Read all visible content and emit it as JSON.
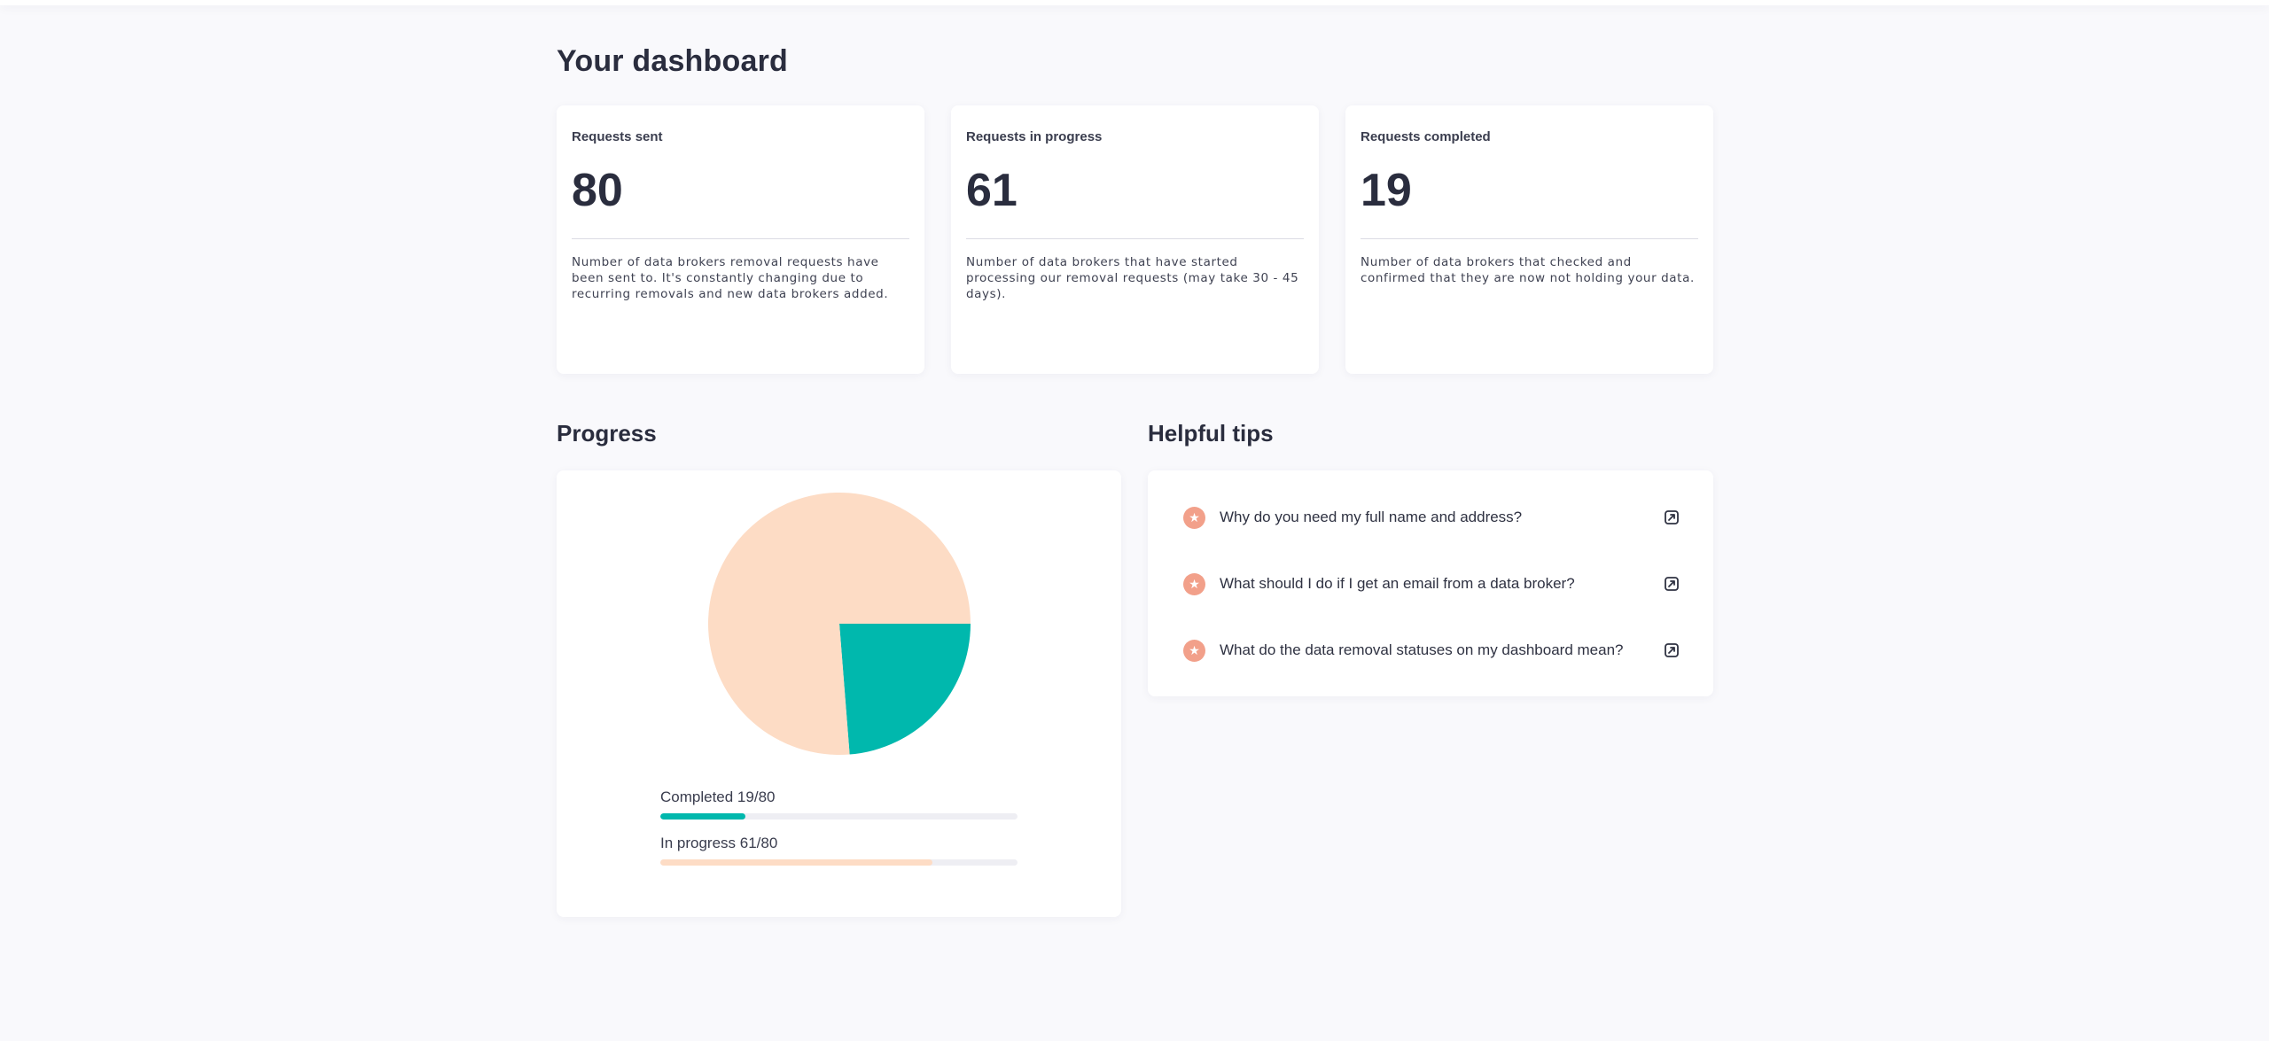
{
  "page": {
    "title": "Your dashboard"
  },
  "stats": [
    {
      "label": "Requests sent",
      "value": "80",
      "description": "Number of data brokers removal requests have been sent to. It's constantly changing due to recurring removals and new data brokers added."
    },
    {
      "label": "Requests in progress",
      "value": "61",
      "description": "Number of data brokers that have started processing our removal requests (may take 30 - 45 days)."
    },
    {
      "label": "Requests completed",
      "value": "19",
      "description": "Number of data brokers that checked and confirmed that they are now not holding your data."
    }
  ],
  "progress": {
    "title": "Progress",
    "total": 80,
    "completed": {
      "label": "Completed 19/80",
      "count": 19,
      "color": "#00b8ad"
    },
    "in_progress": {
      "label": "In progress 61/80",
      "count": 61,
      "color": "#fddcc5"
    },
    "track_color": "#eeeef3"
  },
  "chart_data": {
    "type": "pie",
    "slices": [
      {
        "value": 19,
        "color": "#00b8ad"
      },
      {
        "value": 61,
        "color": "#fddcc5"
      }
    ]
  },
  "tips": {
    "title": "Helpful tips",
    "items": [
      {
        "text": "Why do you need my full name and address?",
        "icon": "star-icon"
      },
      {
        "text": "What should I do if I get an email from a data broker?",
        "icon": "star-icon"
      },
      {
        "text": "What do the data removal statuses on my dashboard mean?",
        "icon": "star-icon"
      }
    ]
  },
  "colors": {
    "accent_teal": "#00b8ad",
    "accent_peach": "#fddcc5",
    "tip_icon": "#f2a08a",
    "text_dark": "#2a2d3e",
    "background": "#f9f9fc"
  }
}
